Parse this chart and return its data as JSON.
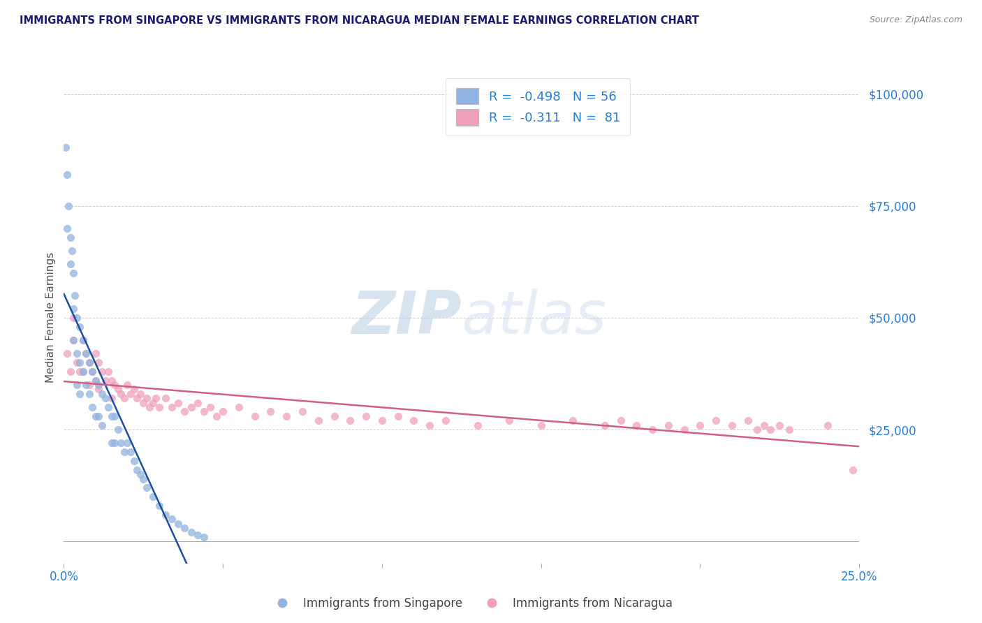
{
  "title": "IMMIGRANTS FROM SINGAPORE VS IMMIGRANTS FROM NICARAGUA MEDIAN FEMALE EARNINGS CORRELATION CHART",
  "source": "Source: ZipAtlas.com",
  "ylabel": "Median Female Earnings",
  "watermark_zip": "ZIP",
  "watermark_atlas": "atlas",
  "title_color": "#1a1a6e",
  "source_color": "#888888",
  "axis_label_color": "#2a7dd4",
  "ylabel_color": "#555555",
  "background_color": "#ffffff",
  "grid_color": "#d0d0d0",
  "xlim": [
    0.0,
    0.25
  ],
  "ylim": [
    -5000,
    105000
  ],
  "xticks": [
    0.0,
    0.05,
    0.1,
    0.15,
    0.2,
    0.25
  ],
  "xticklabels": [
    "0.0%",
    "",
    "",
    "",
    "",
    "25.0%"
  ],
  "yticks": [
    0,
    25000,
    50000,
    75000,
    100000
  ],
  "yticklabels": [
    "",
    "$25,000",
    "$50,000",
    "$75,000",
    "$100,000"
  ],
  "singapore_color": "#92b4e0",
  "nicaragua_color": "#f0a0b8",
  "singapore_line_color": "#1a4fa0",
  "nicaragua_line_color": "#d06080",
  "singapore_r": -0.498,
  "singapore_n": 56,
  "nicaragua_r": -0.311,
  "nicaragua_n": 81,
  "singapore_label": "Immigrants from Singapore",
  "nicaragua_label": "Immigrants from Nicaragua",
  "singapore_x": [
    0.0005,
    0.001,
    0.001,
    0.0015,
    0.002,
    0.002,
    0.0025,
    0.003,
    0.003,
    0.003,
    0.0035,
    0.004,
    0.004,
    0.004,
    0.005,
    0.005,
    0.005,
    0.006,
    0.006,
    0.007,
    0.007,
    0.008,
    0.008,
    0.009,
    0.009,
    0.01,
    0.01,
    0.011,
    0.011,
    0.012,
    0.012,
    0.013,
    0.014,
    0.015,
    0.015,
    0.016,
    0.016,
    0.017,
    0.018,
    0.019,
    0.02,
    0.021,
    0.022,
    0.023,
    0.024,
    0.025,
    0.026,
    0.028,
    0.03,
    0.032,
    0.034,
    0.036,
    0.038,
    0.04,
    0.042,
    0.044
  ],
  "singapore_y": [
    88000,
    82000,
    70000,
    75000,
    68000,
    62000,
    65000,
    60000,
    52000,
    45000,
    55000,
    50000,
    42000,
    35000,
    48000,
    40000,
    33000,
    45000,
    38000,
    42000,
    35000,
    40000,
    33000,
    38000,
    30000,
    36000,
    28000,
    35000,
    28000,
    33000,
    26000,
    32000,
    30000,
    28000,
    22000,
    28000,
    22000,
    25000,
    22000,
    20000,
    22000,
    20000,
    18000,
    16000,
    15000,
    14000,
    12000,
    10000,
    8000,
    6000,
    5000,
    4000,
    3000,
    2000,
    1500,
    1000
  ],
  "nicaragua_x": [
    0.001,
    0.002,
    0.003,
    0.003,
    0.004,
    0.005,
    0.006,
    0.006,
    0.007,
    0.008,
    0.008,
    0.009,
    0.01,
    0.01,
    0.011,
    0.011,
    0.012,
    0.013,
    0.014,
    0.015,
    0.015,
    0.016,
    0.017,
    0.018,
    0.019,
    0.02,
    0.021,
    0.022,
    0.023,
    0.024,
    0.025,
    0.026,
    0.027,
    0.028,
    0.029,
    0.03,
    0.032,
    0.034,
    0.036,
    0.038,
    0.04,
    0.042,
    0.044,
    0.046,
    0.048,
    0.05,
    0.055,
    0.06,
    0.065,
    0.07,
    0.075,
    0.08,
    0.085,
    0.09,
    0.095,
    0.1,
    0.105,
    0.11,
    0.115,
    0.12,
    0.13,
    0.14,
    0.15,
    0.16,
    0.17,
    0.175,
    0.18,
    0.185,
    0.19,
    0.195,
    0.2,
    0.205,
    0.21,
    0.215,
    0.218,
    0.22,
    0.222,
    0.225,
    0.228,
    0.24,
    0.248
  ],
  "nicaragua_y": [
    42000,
    38000,
    45000,
    50000,
    40000,
    38000,
    45000,
    38000,
    42000,
    40000,
    35000,
    38000,
    42000,
    36000,
    40000,
    34000,
    38000,
    36000,
    38000,
    36000,
    32000,
    35000,
    34000,
    33000,
    32000,
    35000,
    33000,
    34000,
    32000,
    33000,
    31000,
    32000,
    30000,
    31000,
    32000,
    30000,
    32000,
    30000,
    31000,
    29000,
    30000,
    31000,
    29000,
    30000,
    28000,
    29000,
    30000,
    28000,
    29000,
    28000,
    29000,
    27000,
    28000,
    27000,
    28000,
    27000,
    28000,
    27000,
    26000,
    27000,
    26000,
    27000,
    26000,
    27000,
    26000,
    27000,
    26000,
    25000,
    26000,
    25000,
    26000,
    27000,
    26000,
    27000,
    25000,
    26000,
    25000,
    26000,
    25000,
    26000,
    16000
  ]
}
